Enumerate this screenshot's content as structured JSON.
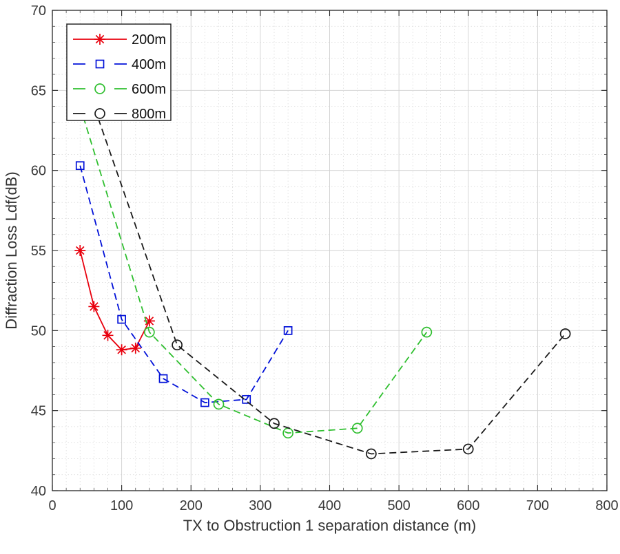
{
  "figure": {
    "background": "#ffffff",
    "style": "matlab-plot"
  },
  "chart_data": {
    "type": "line",
    "title": "",
    "xlabel": "TX to Obstruction 1 separation distance (m)",
    "ylabel": "Diffraction Loss Ldf(dB)",
    "xlim": [
      0,
      800
    ],
    "ylim": [
      40,
      70
    ],
    "x_ticks": [
      0,
      100,
      200,
      300,
      400,
      500,
      600,
      700,
      800
    ],
    "y_ticks": [
      40,
      45,
      50,
      55,
      60,
      65,
      70
    ],
    "x_minor_step": 20,
    "y_minor_step": 1,
    "grid": "major solid + minor dotted",
    "legend_position": "top-left",
    "series": [
      {
        "name": "200m",
        "color": "#e8000d",
        "line": "solid",
        "marker": "asterisk",
        "x": [
          40,
          60,
          80,
          100,
          120,
          140
        ],
        "y": [
          55.0,
          51.5,
          49.7,
          48.8,
          48.9,
          50.6
        ]
      },
      {
        "name": "400m",
        "color": "#0010d8",
        "line": "dashed",
        "marker": "square",
        "x": [
          40,
          100,
          160,
          220,
          280,
          340
        ],
        "y": [
          60.3,
          50.7,
          47.0,
          45.5,
          45.7,
          50.0
        ]
      },
      {
        "name": "600m",
        "color": "#2fbf2f",
        "line": "dashed",
        "marker": "circle",
        "x": [
          40,
          140,
          240,
          340,
          440,
          540
        ],
        "y": [
          64.0,
          49.9,
          45.4,
          43.6,
          43.9,
          49.9
        ]
      },
      {
        "name": "800m",
        "color": "#1a1a1a",
        "line": "dashed",
        "marker": "circle",
        "x": [
          40,
          180,
          320,
          460,
          600,
          740
        ],
        "y": [
          66.5,
          49.1,
          44.2,
          42.3,
          42.6,
          49.8
        ]
      }
    ]
  }
}
